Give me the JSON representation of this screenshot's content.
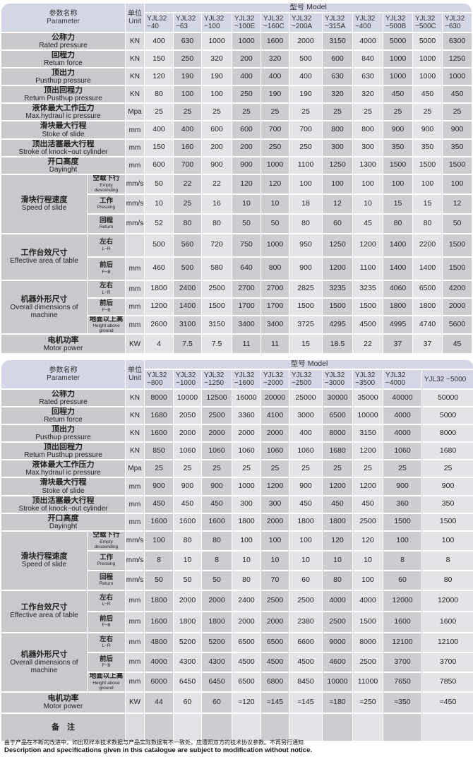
{
  "header": {
    "param_cn": "参数名称",
    "param_en": "Parameter",
    "unit_cn": "单位",
    "unit_en": "Unit",
    "model_label": "型号 Model"
  },
  "tables": [
    {
      "models": [
        "YJL32 −40",
        "YJL32 −63",
        "YJL32 −100",
        "YJL32 −100E",
        "YJL32 −160C",
        "YJL32 −200A",
        "YJL32 −315A",
        "YJL32 −400",
        "YJL32 −500B",
        "YJL32 −500C",
        "YJL32 −630"
      ],
      "shade": [
        0,
        1,
        0,
        1,
        1,
        0,
        1,
        0,
        1,
        0,
        1
      ],
      "rows": [
        {
          "cn": "公称力",
          "en": "Rated pressure",
          "unit": "KN",
          "values": [
            "400",
            "630",
            "1000",
            "1000",
            "1600",
            "2000",
            "3150",
            "4000",
            "5000",
            "5000",
            "6300"
          ]
        },
        {
          "cn": "回程力",
          "en": "Retum force",
          "unit": "KN",
          "values": [
            "150",
            "250",
            "320",
            "200",
            "320",
            "500",
            "600",
            "840",
            "1000",
            "1000",
            "1250"
          ]
        },
        {
          "cn": "顶出力",
          "en": "Pusthup pressure",
          "unit": "KN",
          "values": [
            "120",
            "190",
            "190",
            "400",
            "400",
            "400",
            "630",
            "630",
            "1000",
            "1000",
            "1000"
          ]
        },
        {
          "cn": "顶出回程力",
          "en": "Retum  Pusthup  pressure",
          "unit": "KN",
          "values": [
            "80",
            "100",
            "100",
            "250",
            "190",
            "190",
            "320",
            "320",
            "450",
            "450",
            "450"
          ]
        },
        {
          "cn": "液体最大工作压力",
          "en": "Max.hydraul  ic pressure",
          "unit": "Mpa",
          "values": [
            "25",
            "25",
            "25",
            "25",
            "25",
            "25",
            "25",
            "25",
            "25",
            "25",
            "25"
          ]
        },
        {
          "cn": "滑块最大行程",
          "en": "Stoke of slide",
          "unit": "mm",
          "values": [
            "400",
            "400",
            "600",
            "600",
            "700",
            "700",
            "800",
            "800",
            "900",
            "900",
            "900"
          ]
        },
        {
          "cn": "顶出活塞最大行程",
          "en": "Stroke of knock−out cylinder",
          "unit": "mm",
          "values": [
            "150",
            "160",
            "200",
            "200",
            "250",
            "250",
            "300",
            "300",
            "350",
            "350",
            "350"
          ]
        },
        {
          "cn": "开口高度",
          "en": "Dayinght",
          "unit": "mm",
          "values": [
            "600",
            "700",
            "900",
            "900",
            "1000",
            "1100",
            "1250",
            "1300",
            "1500",
            "1500",
            "1500"
          ]
        },
        {
          "cn": "滑块行程速度",
          "en": "Speed of slide",
          "h": 28,
          "subs": [
            {
              "cn": "空载下行",
              "en": "Empty descending",
              "unit": "mm/s",
              "values": [
                "50",
                "22",
                "22",
                "120",
                "120",
                "100",
                "100",
                "100",
                "100",
                "100",
                "100"
              ]
            },
            {
              "cn": "工作",
              "en": "Pressing",
              "unit": "mm/s",
              "values": [
                "10",
                "25",
                "16",
                "10",
                "10",
                "18",
                "12",
                "10",
                "15",
                "15",
                "12"
              ]
            },
            {
              "cn": "回程",
              "en": "Return",
              "unit": "mm/s",
              "values": [
                "52",
                "80",
                "80",
                "50",
                "50",
                "80",
                "60",
                "45",
                "80",
                "80",
                "50"
              ]
            }
          ]
        },
        {
          "cn": "工作台效尺寸",
          "en": "Effective area of table",
          "h": 33,
          "subs": [
            {
              "cn": "左右",
              "en": "L−R",
              "unit": "",
              "values": [
                "500",
                "560",
                "720",
                "750",
                "1000",
                "950",
                "1250",
                "1200",
                "1400",
                "2200",
                "1500"
              ]
            },
            {
              "cn": "前后",
              "en": "F−B",
              "unit": "mm",
              "values": [
                "460",
                "500",
                "580",
                "640",
                "800",
                "900",
                "1200",
                "1100",
                "1400",
                "1400",
                "1500"
              ]
            }
          ]
        },
        {
          "cn": "机器外形尺寸",
          "en": "Overall dimensions of machine",
          "h": 25,
          "subs": [
            {
              "cn": "左右",
              "en": "L−R",
              "unit": "mm",
              "values": [
                "1800",
                "2400",
                "2500",
                "2700",
                "2700",
                "2825",
                "3235",
                "3235",
                "4060",
                "6500",
                "4200"
              ]
            },
            {
              "cn": "前后",
              "en": "F−B",
              "unit": "mm",
              "values": [
                "1200",
                "1400",
                "1500",
                "1700",
                "1700",
                "1500",
                "1500",
                "1500",
                "1800",
                "1800",
                "2000"
              ]
            },
            {
              "cn": "地面以上高",
              "en": "Height above ground",
              "unit": "mm",
              "values": [
                "2600",
                "3100",
                "3150",
                "3400",
                "3400",
                "3725",
                "4295",
                "4500",
                "4995",
                "4740",
                "5600"
              ]
            }
          ]
        },
        {
          "cn": "电机功率",
          "en": "Motor power",
          "unit": "KW",
          "h": 28,
          "values": [
            "4",
            "7.5",
            "7.5",
            "11",
            "11",
            "15",
            "18.5",
            "22",
            "37",
            "37",
            "45"
          ]
        }
      ]
    },
    {
      "models": [
        "YJL32 −800",
        "YJL32 −1000",
        "YJL32 −1250",
        "YJL32 −1600",
        "YJL32 −2000",
        "YJL32 −2500",
        "YJL32 −3000",
        "YJL32 −3500",
        "YJL32 −4000",
        "YJL32 −5000"
      ],
      "shade": [
        1,
        0,
        1,
        0,
        1,
        0,
        1,
        0,
        1,
        0
      ],
      "rows": [
        {
          "cn": "公称力",
          "en": "Rated pressure",
          "unit": "KN",
          "values": [
            "8000",
            "10000",
            "12500",
            "16000",
            "20000",
            "25000",
            "30000",
            "35000",
            "40000",
            "50000"
          ]
        },
        {
          "cn": "回程力",
          "en": "Retum force",
          "unit": "KN",
          "values": [
            "1680",
            "2050",
            "2500",
            "3360",
            "4100",
            "3000",
            "6500",
            "10000",
            "4000",
            "5000"
          ]
        },
        {
          "cn": "顶出力",
          "en": "Pusthup pressure",
          "unit": "KN",
          "values": [
            "1600",
            "2000",
            "2000",
            "2000",
            "2000",
            "400",
            "8000",
            "3150",
            "4000",
            "8000"
          ]
        },
        {
          "cn": "顶出回程力",
          "en": "Retum  Pusthup  pressure",
          "unit": "KN",
          "values": [
            "850",
            "1060",
            "1060",
            "1060",
            "1060",
            "1060",
            "1680",
            "1200",
            "1060",
            "1680"
          ]
        },
        {
          "cn": "液体最大工作压力",
          "en": "Max.hydraul  ic pressure",
          "unit": "Mpa",
          "values": [
            "25",
            "25",
            "25",
            "25",
            "25",
            "25",
            "25",
            "25",
            "25",
            "25"
          ]
        },
        {
          "cn": "滑块最大行程",
          "en": "Stoke of slide",
          "unit": "mm",
          "values": [
            "900",
            "900",
            "900",
            "1000",
            "1200",
            "900",
            "1200",
            "1200",
            "900",
            "900"
          ]
        },
        {
          "cn": "顶出活塞最大行程",
          "en": "Stroke of knock−out cylinder",
          "unit": "mm",
          "values": [
            "450",
            "450",
            "450",
            "300",
            "300",
            "450",
            "450",
            "450",
            "360",
            "350"
          ]
        },
        {
          "cn": "开口高度",
          "en": "Dayinght",
          "unit": "mm",
          "values": [
            "1600",
            "1600",
            "1600",
            "1800",
            "2000",
            "1800",
            "1800",
            "2500",
            "1500",
            "1500"
          ]
        },
        {
          "cn": "滑块行程速度",
          "en": "Speed of slide",
          "h": 28,
          "subs": [
            {
              "cn": "空载下行",
              "en": "Empty descending",
              "unit": "mm/s",
              "values": [
                "100",
                "80",
                "80",
                "100",
                "100",
                "100",
                "120",
                "120",
                "100",
                "100"
              ]
            },
            {
              "cn": "工作",
              "en": "Pressing",
              "unit": "mm/s",
              "values": [
                "8",
                "10",
                "8",
                "10",
                "10",
                "10",
                "10",
                "10",
                "8",
                "8"
              ]
            },
            {
              "cn": "回程",
              "en": "Return",
              "unit": "mm/s",
              "values": [
                "50",
                "50",
                "50",
                "80",
                "70",
                "60",
                "80",
                "100",
                "60",
                "80"
              ]
            }
          ]
        },
        {
          "cn": "工作台效尺寸",
          "en": "Effective area of table",
          "h": 30,
          "subs": [
            {
              "cn": "左右",
              "en": "L−R",
              "unit": "mm",
              "values": [
                "1800",
                "2000",
                "2000",
                "2400",
                "2500",
                "2500",
                "4000",
                "4000",
                "12000",
                "12000"
              ]
            },
            {
              "cn": "前后",
              "en": "F−B",
              "unit": "mm",
              "values": [
                "1600",
                "1800",
                "1800",
                "2000",
                "2000",
                "2380",
                "2500",
                "1500",
                "1600",
                "1600"
              ]
            }
          ]
        },
        {
          "cn": "机器外形尺寸",
          "en": "Overall dimensions of machine",
          "h": 28,
          "subs": [
            {
              "cn": "左右",
              "en": "L−R",
              "unit": "mm",
              "values": [
                "4800",
                "5200",
                "5200",
                "6500",
                "6500",
                "6600",
                "9000",
                "8000",
                "12100",
                "12100"
              ]
            },
            {
              "cn": "前后",
              "en": "F−B",
              "unit": "mm",
              "values": [
                "4000",
                "4300",
                "4300",
                "4500",
                "4500",
                "4500",
                "4600",
                "2500",
                "3700",
                "3700"
              ]
            },
            {
              "cn": "地面以上高",
              "en": "Height above ground",
              "unit": "mm",
              "values": [
                "6000",
                "6450",
                "6450",
                "6500",
                "6800",
                "8450",
                "10000",
                "11000",
                "7650",
                "7850"
              ]
            }
          ]
        },
        {
          "cn": "电机功率",
          "en": "Motor power",
          "unit": "KW",
          "h": 30,
          "values": [
            "44",
            "60",
            "60",
            "≈120",
            "≈145",
            "≈145",
            "≈180",
            "≈250",
            "≈350",
            "≈450"
          ]
        },
        {
          "cn": "备　注",
          "en": "",
          "unit": "",
          "h": 40,
          "values": [
            "",
            "",
            "",
            "",
            "",
            "",
            "",
            "",
            "",
            ""
          ]
        }
      ]
    }
  ],
  "footer": {
    "cn": "由于产品在不断的改进中，如出现样本技术数据与产品实际数据有不一致处，应遵照双方的技术协议参数。不再另行通知",
    "en": "Description and specifications given in this catalogue are subject to modification without notice."
  }
}
